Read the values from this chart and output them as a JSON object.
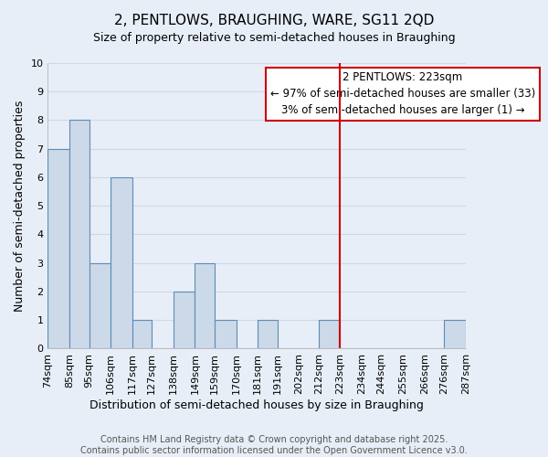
{
  "title": "2, PENTLOWS, BRAUGHING, WARE, SG11 2QD",
  "subtitle": "Size of property relative to semi-detached houses in Braughing",
  "xlabel": "Distribution of semi-detached houses by size in Braughing",
  "ylabel": "Number of semi-detached properties",
  "bar_color": "#ccd9e8",
  "bar_edge_color": "#5b8db8",
  "background_color": "#e8eef8",
  "grid_color": "#d0d8e8",
  "bins": [
    74,
    85,
    95,
    106,
    117,
    127,
    138,
    149,
    159,
    170,
    181,
    191,
    202,
    212,
    223,
    234,
    244,
    255,
    266,
    276,
    287
  ],
  "bin_labels": [
    "74sqm",
    "85sqm",
    "95sqm",
    "106sqm",
    "117sqm",
    "127sqm",
    "138sqm",
    "149sqm",
    "159sqm",
    "170sqm",
    "181sqm",
    "191sqm",
    "202sqm",
    "212sqm",
    "223sqm",
    "234sqm",
    "244sqm",
    "255sqm",
    "266sqm",
    "276sqm",
    "287sqm"
  ],
  "counts": [
    7,
    8,
    3,
    6,
    1,
    0,
    2,
    3,
    1,
    0,
    1,
    0,
    0,
    1,
    0,
    0,
    0,
    0,
    0,
    1
  ],
  "ylim": [
    0,
    10
  ],
  "yticks": [
    0,
    1,
    2,
    3,
    4,
    5,
    6,
    7,
    8,
    9,
    10
  ],
  "property_line_x": 223,
  "property_line_color": "#cc0000",
  "annotation_title": "2 PENTLOWS: 223sqm",
  "annotation_line1": "← 97% of semi-detached houses are smaller (33)",
  "annotation_line2": "3% of semi-detached houses are larger (1) →",
  "footer_line1": "Contains HM Land Registry data © Crown copyright and database right 2025.",
  "footer_line2": "Contains public sector information licensed under the Open Government Licence v3.0.",
  "title_fontsize": 11,
  "subtitle_fontsize": 10,
  "axis_label_fontsize": 9,
  "tick_fontsize": 8,
  "annotation_fontsize": 8.5,
  "footer_fontsize": 7
}
